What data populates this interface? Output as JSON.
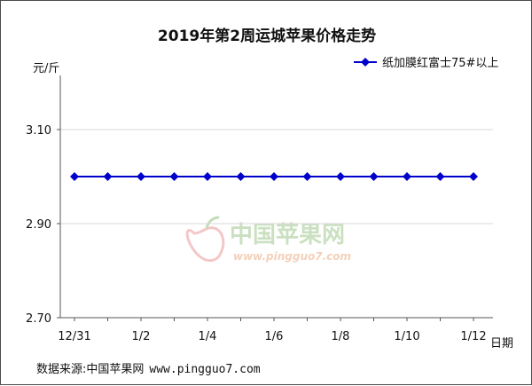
{
  "chart_data": {
    "type": "line",
    "title": "2019年第2周运城苹果价格走势",
    "ylabel": "元/斤",
    "xlabel": "日期",
    "ylim": [
      2.7,
      3.2
    ],
    "yticks": [
      "2.70",
      "2.90",
      "3.10"
    ],
    "x": [
      "12/31",
      "1/1",
      "1/2",
      "1/3",
      "1/4",
      "1/5",
      "1/6",
      "1/7",
      "1/8",
      "1/9",
      "1/10",
      "1/11",
      "1/12"
    ],
    "x_tick_labels": [
      "12/31",
      "1/2",
      "1/4",
      "1/6",
      "1/8",
      "1/10",
      "1/12"
    ],
    "series": [
      {
        "name": "纸加膜红富士75#以上",
        "color": "#0000cc",
        "values": [
          3.0,
          3.0,
          3.0,
          3.0,
          3.0,
          3.0,
          3.0,
          3.0,
          3.0,
          3.0,
          3.0,
          3.0,
          3.0
        ]
      }
    ],
    "legend_position": "top-right",
    "grid": "horizontal"
  },
  "watermark": {
    "text_cn": "中国苹果网",
    "text_url": "www.pingguo7.com"
  },
  "footer": {
    "source_label": "数据来源:中国苹果网",
    "site": "www.pingguo7.com"
  }
}
